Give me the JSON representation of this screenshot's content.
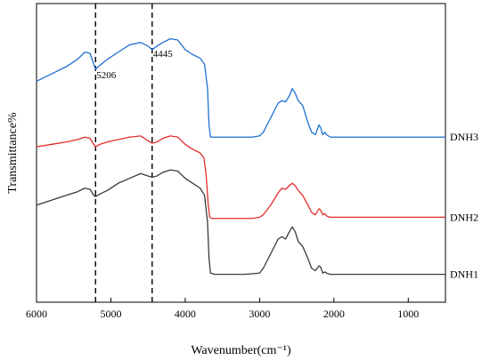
{
  "chart_data": {
    "type": "line",
    "title": "",
    "xlabel": "Wavenumber(cm⁻¹)",
    "ylabel": "Transmittance%",
    "xlim": [
      6000,
      500
    ],
    "x_ticks": [
      6000,
      5000,
      4000,
      3000,
      2000,
      1000
    ],
    "grid": false,
    "legend": "none",
    "reference_lines": [
      {
        "x": 5206,
        "label": "5206"
      },
      {
        "x": 4445,
        "label": "4445"
      }
    ],
    "series": [
      {
        "name": "DNH3",
        "color": "#1f6fd1",
        "points": [
          [
            6000,
            63
          ],
          [
            5800,
            66
          ],
          [
            5600,
            69
          ],
          [
            5450,
            72
          ],
          [
            5350,
            75
          ],
          [
            5280,
            74.5
          ],
          [
            5230,
            70
          ],
          [
            5206,
            68
          ],
          [
            5150,
            69.5
          ],
          [
            5050,
            72
          ],
          [
            4900,
            75
          ],
          [
            4750,
            78
          ],
          [
            4600,
            79
          ],
          [
            4500,
            77.5
          ],
          [
            4445,
            76
          ],
          [
            4380,
            77.5
          ],
          [
            4300,
            79
          ],
          [
            4200,
            80.5
          ],
          [
            4100,
            80
          ],
          [
            4000,
            76
          ],
          [
            3900,
            74
          ],
          [
            3800,
            72.5
          ],
          [
            3740,
            70
          ],
          [
            3700,
            60
          ],
          [
            3680,
            45
          ],
          [
            3660,
            40
          ],
          [
            3500,
            40
          ],
          [
            3300,
            40
          ],
          [
            3100,
            40
          ],
          [
            3000,
            40.5
          ],
          [
            2950,
            42
          ],
          [
            2850,
            48
          ],
          [
            2750,
            54
          ],
          [
            2700,
            55
          ],
          [
            2650,
            54.5
          ],
          [
            2600,
            57
          ],
          [
            2560,
            60
          ],
          [
            2520,
            58
          ],
          [
            2480,
            55
          ],
          [
            2420,
            53
          ],
          [
            2350,
            46
          ],
          [
            2300,
            42
          ],
          [
            2250,
            41
          ],
          [
            2200,
            45
          ],
          [
            2180,
            44
          ],
          [
            2150,
            41
          ],
          [
            2120,
            42
          ],
          [
            2100,
            41
          ],
          [
            2050,
            40
          ],
          [
            1500,
            40
          ],
          [
            1000,
            40
          ],
          [
            500,
            40
          ]
        ]
      },
      {
        "name": "DNH2",
        "color": "#e32b2b",
        "points": [
          [
            6000,
            36
          ],
          [
            5800,
            37
          ],
          [
            5600,
            38
          ],
          [
            5450,
            39
          ],
          [
            5350,
            40
          ],
          [
            5280,
            39.5
          ],
          [
            5230,
            37
          ],
          [
            5206,
            36
          ],
          [
            5150,
            37
          ],
          [
            5050,
            38
          ],
          [
            4900,
            39
          ],
          [
            4750,
            40
          ],
          [
            4600,
            40.5
          ],
          [
            4500,
            38.5
          ],
          [
            4445,
            37.5
          ],
          [
            4380,
            38
          ],
          [
            4300,
            39.5
          ],
          [
            4200,
            40.5
          ],
          [
            4100,
            40
          ],
          [
            4000,
            37
          ],
          [
            3900,
            35
          ],
          [
            3800,
            33.5
          ],
          [
            3750,
            31.5
          ],
          [
            3720,
            25
          ],
          [
            3690,
            12
          ],
          [
            3670,
            7
          ],
          [
            3640,
            6.5
          ],
          [
            3500,
            6.5
          ],
          [
            3300,
            6.5
          ],
          [
            3100,
            6.5
          ],
          [
            3000,
            7
          ],
          [
            2950,
            8
          ],
          [
            2850,
            12
          ],
          [
            2750,
            17
          ],
          [
            2700,
            19
          ],
          [
            2650,
            18.5
          ],
          [
            2600,
            20
          ],
          [
            2560,
            21
          ],
          [
            2520,
            20
          ],
          [
            2480,
            18
          ],
          [
            2420,
            16
          ],
          [
            2350,
            12
          ],
          [
            2300,
            9
          ],
          [
            2250,
            8
          ],
          [
            2200,
            10.5
          ],
          [
            2180,
            10
          ],
          [
            2150,
            8
          ],
          [
            2120,
            8.5
          ],
          [
            2100,
            7.5
          ],
          [
            2050,
            7
          ],
          [
            1500,
            7
          ],
          [
            1000,
            7
          ],
          [
            500,
            7
          ]
        ]
      },
      {
        "name": "DNH1",
        "color": "#3a3a3a",
        "points": [
          [
            6000,
            12
          ],
          [
            5800,
            14
          ],
          [
            5600,
            16
          ],
          [
            5450,
            17.5
          ],
          [
            5350,
            19
          ],
          [
            5280,
            18.5
          ],
          [
            5230,
            16
          ],
          [
            5206,
            15.5
          ],
          [
            5150,
            16.5
          ],
          [
            5050,
            18
          ],
          [
            4900,
            21
          ],
          [
            4750,
            23
          ],
          [
            4600,
            25
          ],
          [
            4500,
            24
          ],
          [
            4445,
            23.5
          ],
          [
            4380,
            24
          ],
          [
            4300,
            25.5
          ],
          [
            4200,
            26.5
          ],
          [
            4100,
            26
          ],
          [
            4000,
            23
          ],
          [
            3900,
            21
          ],
          [
            3800,
            19
          ],
          [
            3740,
            16
          ],
          [
            3700,
            5
          ],
          [
            3680,
            -10
          ],
          [
            3660,
            -16
          ],
          [
            3600,
            -16.5
          ],
          [
            3400,
            -16.5
          ],
          [
            3200,
            -16.5
          ],
          [
            3000,
            -16
          ],
          [
            2950,
            -14
          ],
          [
            2850,
            -8
          ],
          [
            2750,
            -2
          ],
          [
            2700,
            -1
          ],
          [
            2650,
            -2
          ],
          [
            2600,
            1
          ],
          [
            2560,
            3
          ],
          [
            2520,
            1
          ],
          [
            2480,
            -3
          ],
          [
            2420,
            -5
          ],
          [
            2350,
            -10
          ],
          [
            2300,
            -14
          ],
          [
            2250,
            -15
          ],
          [
            2200,
            -13
          ],
          [
            2180,
            -13.5
          ],
          [
            2150,
            -16
          ],
          [
            2120,
            -15.5
          ],
          [
            2100,
            -16
          ],
          [
            2050,
            -16.5
          ],
          [
            1500,
            -16.5
          ],
          [
            1000,
            -16.5
          ],
          [
            500,
            -16.5
          ]
        ]
      }
    ]
  }
}
